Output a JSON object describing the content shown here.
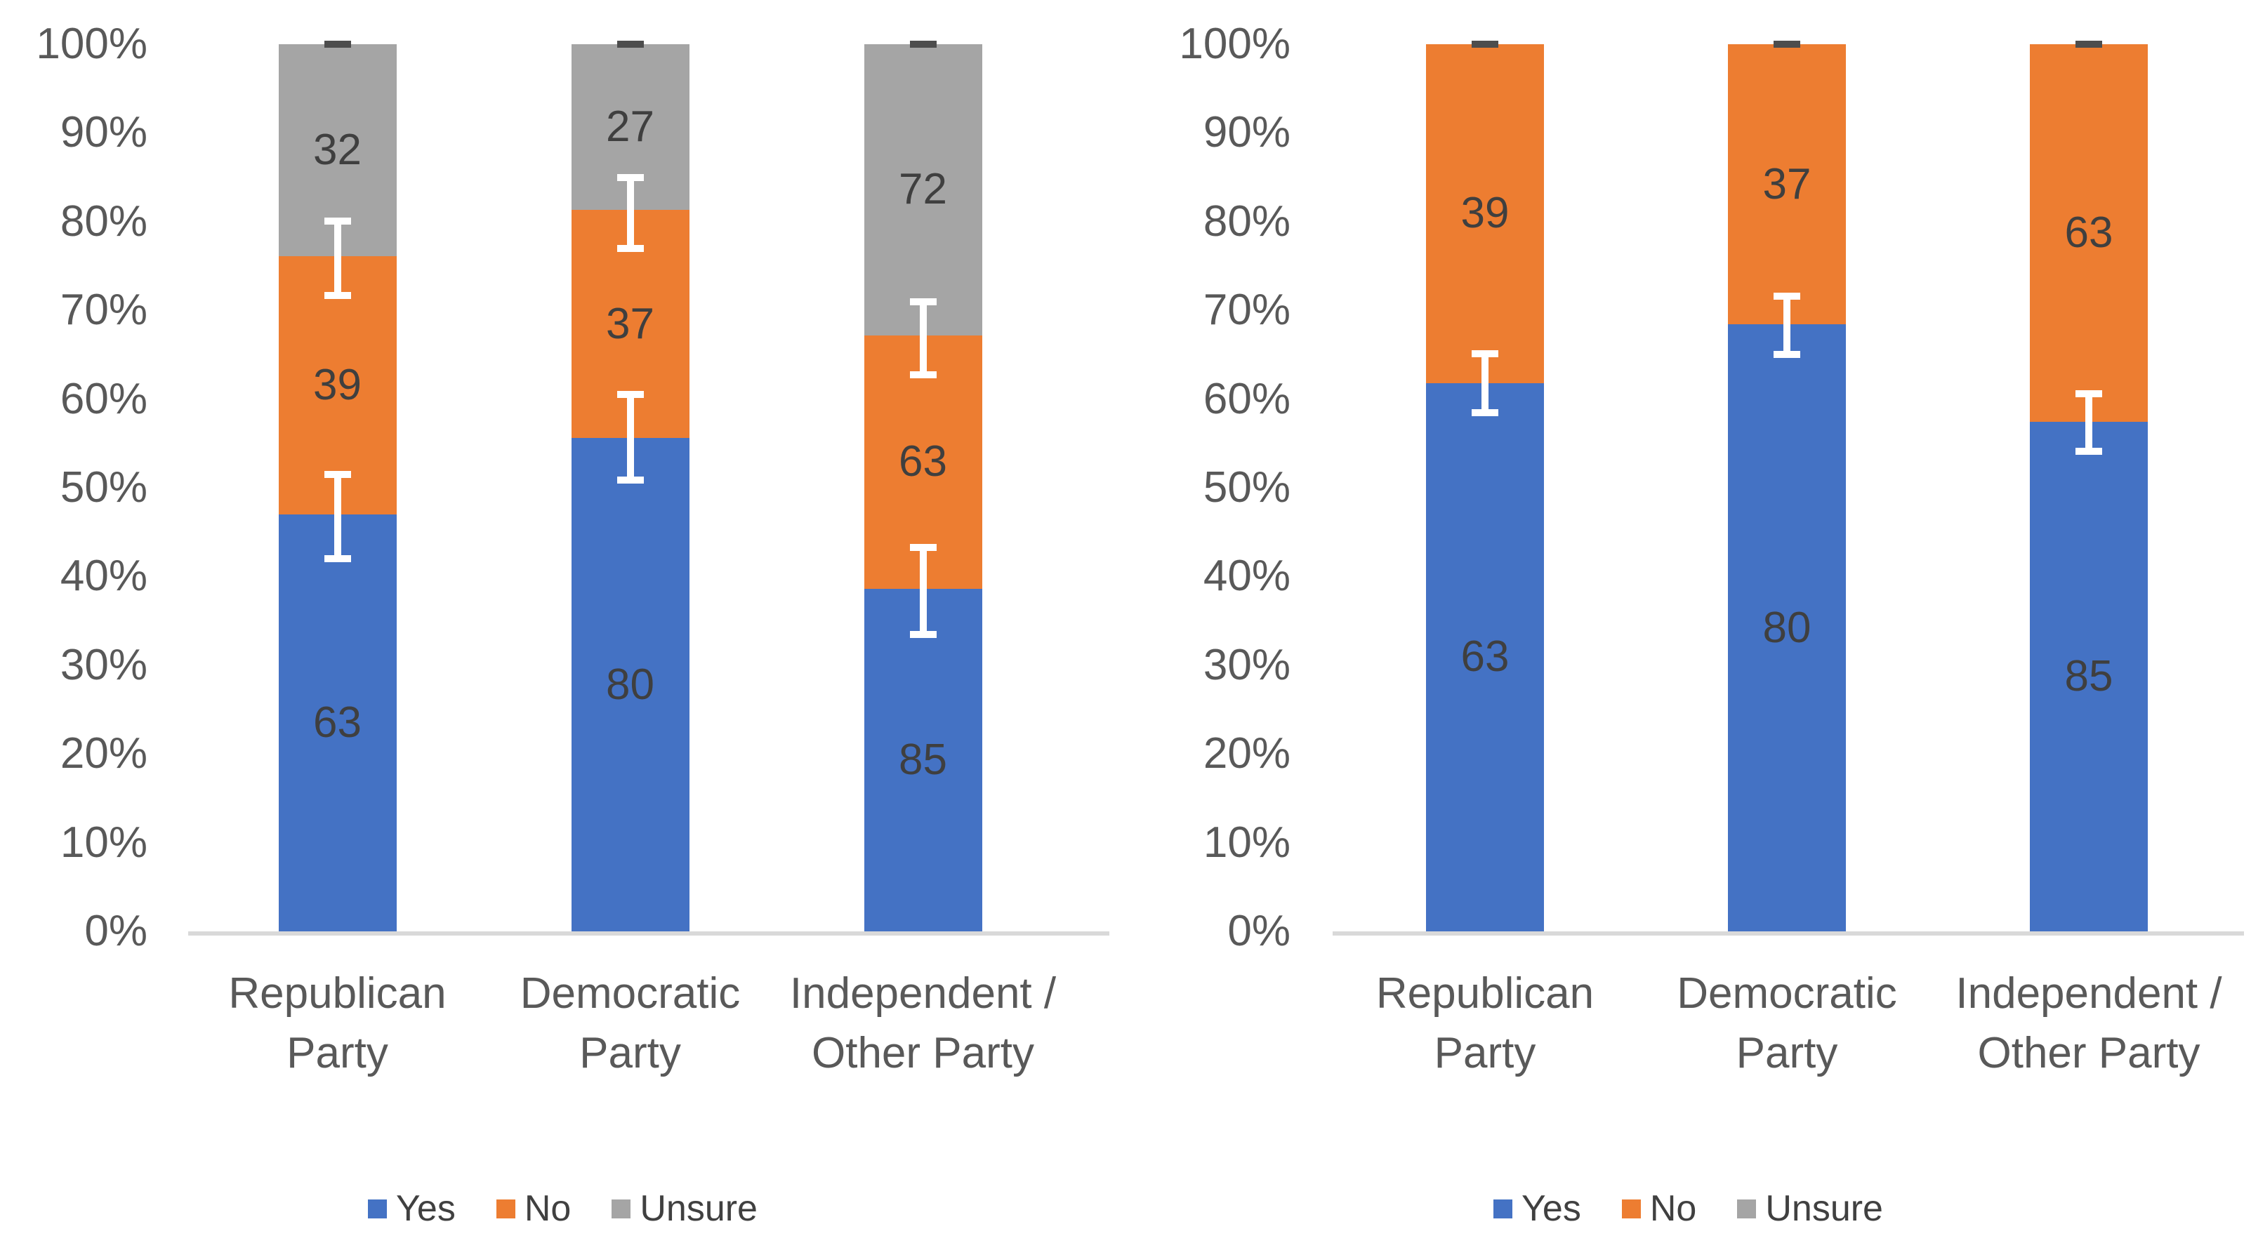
{
  "colors": {
    "yes": "#4472C4",
    "no": "#ED7D31",
    "unsure": "#A5A5A5",
    "error_bar": "#FFFFFF",
    "top_cap": "#4D4D4D",
    "axis_line": "#D9D9D9",
    "tick_text": "#595959",
    "category_text": "#595959",
    "data_label_text": "#3F3F3F",
    "legend_text": "#404040",
    "background": "#FFFFFF"
  },
  "chart_data": [
    {
      "id": "left",
      "type": "bar",
      "subtype": "stacked-100-percent-with-error-bars",
      "title": "",
      "xlabel": "",
      "ylabel": "",
      "y_axis": {
        "min": 0,
        "max": 100,
        "step": 10,
        "tick_labels": [
          "0%",
          "10%",
          "20%",
          "30%",
          "40%",
          "50%",
          "60%",
          "70%",
          "80%",
          "90%",
          "100%"
        ]
      },
      "categories": [
        "Republican Party",
        "Democratic Party",
        "Independent / Other Party"
      ],
      "series": [
        {
          "name": "Yes",
          "color_key": "yes",
          "values": [
            63,
            80,
            85
          ]
        },
        {
          "name": "No",
          "color_key": "no",
          "values": [
            39,
            37,
            63
          ]
        },
        {
          "name": "Unsure",
          "color_key": "unsure",
          "values": [
            32,
            27,
            72
          ]
        }
      ],
      "bars": [
        {
          "category": "Republican Party",
          "segments": [
            {
              "series": "Yes",
              "color_key": "yes",
              "label": "63",
              "pct": 47.0
            },
            {
              "series": "No",
              "color_key": "no",
              "label": "39",
              "pct": 29.1
            },
            {
              "series": "Unsure",
              "color_key": "unsure",
              "label": "32",
              "pct": 23.9
            }
          ],
          "error_bars": [
            {
              "low_pct": 42.0,
              "high_pct": 51.5
            },
            {
              "low_pct": 71.7,
              "high_pct": 80.1
            }
          ],
          "top_cap_pct": 100
        },
        {
          "category": "Democratic Party",
          "segments": [
            {
              "series": "Yes",
              "color_key": "yes",
              "label": "80",
              "pct": 55.6
            },
            {
              "series": "No",
              "color_key": "no",
              "label": "37",
              "pct": 25.7
            },
            {
              "series": "Unsure",
              "color_key": "unsure",
              "label": "27",
              "pct": 18.7
            }
          ],
          "error_bars": [
            {
              "low_pct": 50.9,
              "high_pct": 60.5
            },
            {
              "low_pct": 77.0,
              "high_pct": 85.0
            }
          ],
          "top_cap_pct": 100
        },
        {
          "category": "Independent / Other Party",
          "segments": [
            {
              "series": "Yes",
              "color_key": "yes",
              "label": "85",
              "pct": 38.6
            },
            {
              "series": "No",
              "color_key": "no",
              "label": "63",
              "pct": 28.6
            },
            {
              "series": "Unsure",
              "color_key": "unsure",
              "label": "72",
              "pct": 32.8
            }
          ],
          "error_bars": [
            {
              "low_pct": 33.5,
              "high_pct": 43.3
            },
            {
              "low_pct": 62.7,
              "high_pct": 71.0
            }
          ],
          "top_cap_pct": 100
        }
      ],
      "legend": [
        {
          "label": "Yes",
          "color_key": "yes"
        },
        {
          "label": "No",
          "color_key": "no"
        },
        {
          "label": "Unsure",
          "color_key": "unsure"
        }
      ]
    },
    {
      "id": "right",
      "type": "bar",
      "subtype": "stacked-100-percent-with-error-bars",
      "title": "",
      "xlabel": "",
      "ylabel": "",
      "y_axis": {
        "min": 0,
        "max": 100,
        "step": 10,
        "tick_labels": [
          "0%",
          "10%",
          "20%",
          "30%",
          "40%",
          "50%",
          "60%",
          "70%",
          "80%",
          "90%",
          "100%"
        ]
      },
      "categories": [
        "Republican Party",
        "Democratic Party",
        "Independent / Other Party"
      ],
      "series": [
        {
          "name": "Yes",
          "color_key": "yes",
          "values": [
            63,
            80,
            85
          ]
        },
        {
          "name": "No",
          "color_key": "no",
          "values": [
            39,
            37,
            63
          ]
        }
      ],
      "bars": [
        {
          "category": "Republican Party",
          "segments": [
            {
              "series": "Yes",
              "color_key": "yes",
              "label": "63",
              "pct": 61.8
            },
            {
              "series": "No",
              "color_key": "no",
              "label": "39",
              "pct": 38.2
            }
          ],
          "error_bars": [
            {
              "low_pct": 58.5,
              "high_pct": 65.1
            }
          ],
          "top_cap_pct": 100
        },
        {
          "category": "Democratic Party",
          "segments": [
            {
              "series": "Yes",
              "color_key": "yes",
              "label": "80",
              "pct": 68.4
            },
            {
              "series": "No",
              "color_key": "no",
              "label": "37",
              "pct": 31.6
            }
          ],
          "error_bars": [
            {
              "low_pct": 65.0,
              "high_pct": 71.6
            }
          ],
          "top_cap_pct": 100
        },
        {
          "category": "Independent / Other Party",
          "segments": [
            {
              "series": "Yes",
              "color_key": "yes",
              "label": "85",
              "pct": 57.4
            },
            {
              "series": "No",
              "color_key": "no",
              "label": "63",
              "pct": 42.6
            }
          ],
          "error_bars": [
            {
              "low_pct": 54.1,
              "high_pct": 60.6
            }
          ],
          "top_cap_pct": 100
        }
      ],
      "legend": [
        {
          "label": "Yes",
          "color_key": "yes"
        },
        {
          "label": "No",
          "color_key": "no"
        },
        {
          "label": "Unsure",
          "color_key": "unsure"
        }
      ]
    }
  ]
}
